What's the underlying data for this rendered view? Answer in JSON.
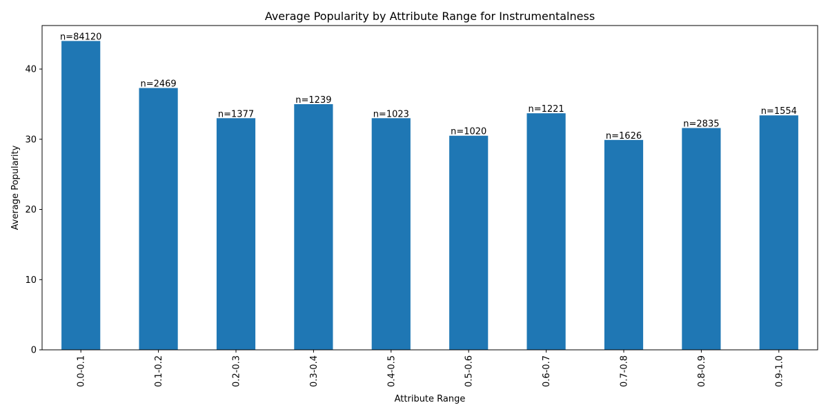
{
  "chart_data": {
    "type": "bar",
    "title": "Average Popularity by Attribute Range for Instrumentalness",
    "xlabel": "Attribute Range",
    "ylabel": "Average Popularity",
    "categories": [
      "0.0-0.1",
      "0.1-0.2",
      "0.2-0.3",
      "0.3-0.4",
      "0.4-0.5",
      "0.5-0.6",
      "0.6-0.7",
      "0.7-0.8",
      "0.8-0.9",
      "0.9-1.0"
    ],
    "values": [
      44.0,
      37.3,
      33.0,
      35.0,
      33.0,
      30.5,
      33.7,
      29.9,
      31.6,
      33.4
    ],
    "data_labels": [
      "n=84120",
      "n=2469",
      "n=1377",
      "n=1239",
      "n=1023",
      "n=1020",
      "n=1221",
      "n=1626",
      "n=2835",
      "n=1554"
    ],
    "ylim": [
      0,
      46.2
    ],
    "yticks": [
      0,
      10,
      20,
      30,
      40
    ],
    "x_tick_rotation": "vertical",
    "grid": false,
    "legend": "none",
    "bar_color": "#1f77b4"
  }
}
